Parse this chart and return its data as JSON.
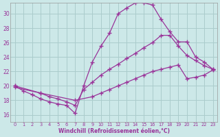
{
  "xlabel": "Windchill (Refroidissement éolien,°C)",
  "bg_color": "#cce8e8",
  "grid_color": "#aacccc",
  "line_color": "#993399",
  "xlim": [
    -0.5,
    23.5
  ],
  "ylim": [
    15.0,
    31.5
  ],
  "yticks": [
    16,
    18,
    20,
    22,
    24,
    26,
    28,
    30
  ],
  "xticks": [
    0,
    1,
    2,
    3,
    4,
    5,
    6,
    7,
    8,
    9,
    10,
    11,
    12,
    13,
    14,
    15,
    16,
    17,
    18,
    19,
    20,
    21,
    22,
    23
  ],
  "line1_x": [
    0,
    1,
    2,
    3,
    4,
    5,
    6,
    7,
    8,
    9,
    10,
    11,
    12,
    13,
    14,
    15,
    16,
    17,
    18,
    19,
    20,
    21,
    22,
    23
  ],
  "line1_y": [
    20.0,
    19.3,
    18.8,
    18.2,
    17.8,
    17.5,
    17.3,
    16.2,
    20.0,
    23.3,
    25.5,
    27.3,
    30.0,
    30.8,
    31.5,
    31.5,
    31.2,
    29.2,
    27.5,
    26.1,
    26.1,
    24.0,
    23.3,
    22.3
  ],
  "line2_x": [
    0,
    3,
    4,
    5,
    6,
    7,
    8,
    9,
    10,
    11,
    12,
    13,
    14,
    15,
    16,
    17,
    18,
    19,
    20,
    21,
    22,
    23
  ],
  "line2_y": [
    20.0,
    19.0,
    18.5,
    18.2,
    17.8,
    17.3,
    19.5,
    20.5,
    21.5,
    22.3,
    23.0,
    23.8,
    24.5,
    25.3,
    26.0,
    27.0,
    27.0,
    25.5,
    24.2,
    23.5,
    22.8,
    22.3
  ],
  "line3_x": [
    0,
    3,
    7,
    9,
    10,
    11,
    12,
    13,
    14,
    15,
    16,
    17,
    18,
    19,
    20,
    21,
    22,
    23
  ],
  "line3_y": [
    19.8,
    19.0,
    18.0,
    18.5,
    19.0,
    19.5,
    20.0,
    20.5,
    21.0,
    21.5,
    22.0,
    22.3,
    22.6,
    22.9,
    21.0,
    21.2,
    21.5,
    22.2
  ]
}
